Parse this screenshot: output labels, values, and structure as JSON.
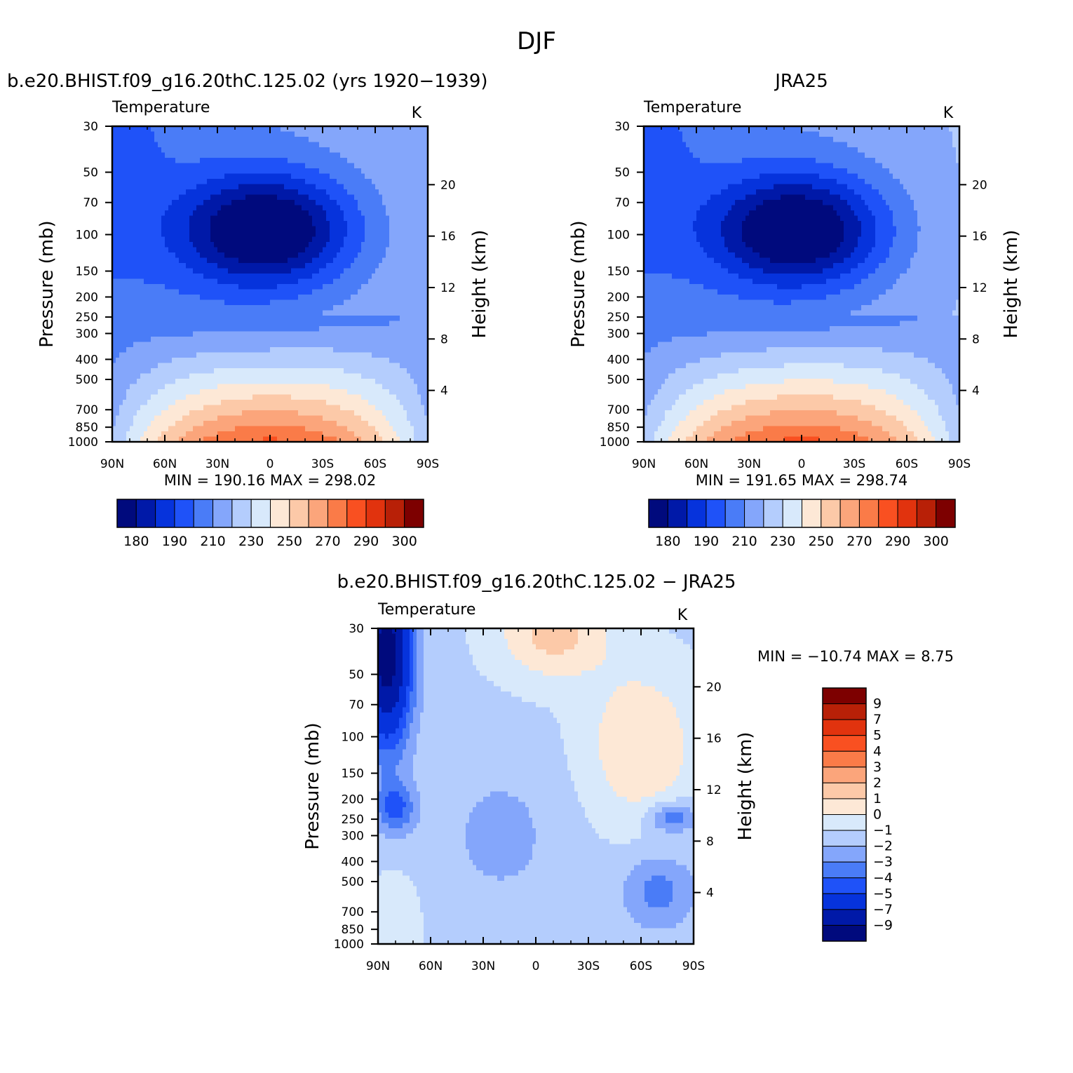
{
  "figure": {
    "title": "DJF"
  },
  "chart_data": [
    {
      "type": "heatmap",
      "panel_title": "b.e20.BHIST.f09_g16.20thC.125.02 (yrs 1920-1939)",
      "variable": "Temperature",
      "units": "K",
      "ylabel": "Pressure (mb)",
      "ylabel_right": "Height (km)",
      "x_ticklabels": [
        "90N",
        "60N",
        "30N",
        "0",
        "30S",
        "60S",
        "90S"
      ],
      "y_ticklabels": [
        "30",
        "50",
        "70",
        "100",
        "150",
        "200",
        "250",
        "300",
        "400",
        "500",
        "700",
        "850",
        "1000"
      ],
      "y_right_ticklabels": [
        "20",
        "16",
        "12",
        "8",
        "4"
      ],
      "xlim": [
        90,
        -90
      ],
      "ylim": [
        1000,
        30
      ],
      "y_scale": "log",
      "stats": "MIN = 190.16   MAX = 298.02",
      "min": 190.16,
      "max": 298.02,
      "colorbar": {
        "orientation": "horizontal",
        "colors": [
          "#000a7d",
          "#0019a8",
          "#0633dc",
          "#1f52f8",
          "#4a7cf7",
          "#84a6fb",
          "#b4cdfd",
          "#d8e9fb",
          "#fde8d6",
          "#fcc9a8",
          "#fba57b",
          "#fa7b48",
          "#f95021",
          "#e1330e",
          "#b82007",
          "#7d0000"
        ],
        "labels": [
          "180",
          "190",
          "210",
          "230",
          "250",
          "270",
          "290",
          "300"
        ],
        "levels": [
          180,
          190,
          200,
          210,
          220,
          230,
          240,
          250,
          260,
          270,
          280,
          290,
          295,
          300,
          305
        ]
      }
    },
    {
      "type": "heatmap",
      "panel_title": "JRA25",
      "variable": "Temperature",
      "units": "K",
      "ylabel": "Pressure (mb)",
      "ylabel_right": "Height (km)",
      "x_ticklabels": [
        "90N",
        "60N",
        "30N",
        "0",
        "30S",
        "60S",
        "90S"
      ],
      "y_ticklabels": [
        "30",
        "50",
        "70",
        "100",
        "150",
        "200",
        "250",
        "300",
        "400",
        "500",
        "700",
        "850",
        "1000"
      ],
      "y_right_ticklabels": [
        "20",
        "16",
        "12",
        "8",
        "4"
      ],
      "xlim": [
        90,
        -90
      ],
      "ylim": [
        1000,
        30
      ],
      "y_scale": "log",
      "stats": "MIN = 191.65   MAX = 298.74",
      "min": 191.65,
      "max": 298.74,
      "colorbar": {
        "orientation": "horizontal",
        "colors": [
          "#000a7d",
          "#0019a8",
          "#0633dc",
          "#1f52f8",
          "#4a7cf7",
          "#84a6fb",
          "#b4cdfd",
          "#d8e9fb",
          "#fde8d6",
          "#fcc9a8",
          "#fba57b",
          "#fa7b48",
          "#f95021",
          "#e1330e",
          "#b82007",
          "#7d0000"
        ],
        "labels": [
          "180",
          "190",
          "210",
          "230",
          "250",
          "270",
          "290",
          "300"
        ],
        "levels": [
          180,
          190,
          200,
          210,
          220,
          230,
          240,
          250,
          260,
          270,
          280,
          290,
          295,
          300,
          305
        ]
      }
    },
    {
      "type": "heatmap",
      "panel_title": "b.e20.BHIST.f09_g16.20thC.125.02 - JRA25",
      "variable": "Temperature",
      "units": "K",
      "ylabel": "Pressure (mb)",
      "ylabel_right": "Height (km)",
      "x_ticklabels": [
        "90N",
        "60N",
        "30N",
        "0",
        "30S",
        "60S",
        "90S"
      ],
      "y_ticklabels": [
        "30",
        "50",
        "70",
        "100",
        "150",
        "200",
        "250",
        "300",
        "400",
        "500",
        "700",
        "850",
        "1000"
      ],
      "y_right_ticklabels": [
        "20",
        "16",
        "12",
        "8",
        "4"
      ],
      "xlim": [
        90,
        -90
      ],
      "ylim": [
        1000,
        30
      ],
      "y_scale": "log",
      "stats": "MIN = -10.74   MAX =    8.75",
      "min": -10.74,
      "max": 8.75,
      "colorbar": {
        "orientation": "vertical",
        "colors": [
          "#000a7d",
          "#0019a8",
          "#0633dc",
          "#1f52f8",
          "#4a7cf7",
          "#84a6fb",
          "#b4cdfd",
          "#d8e9fb",
          "#fde8d6",
          "#fcc9a8",
          "#fba57b",
          "#fa7b48",
          "#f95021",
          "#e1330e",
          "#b82007",
          "#7d0000"
        ],
        "labels": [
          "-9",
          "-7",
          "-5",
          "-4",
          "-3",
          "-2",
          "-1",
          "0",
          "1",
          "2",
          "3",
          "4",
          "5",
          "7",
          "9"
        ]
      }
    }
  ]
}
